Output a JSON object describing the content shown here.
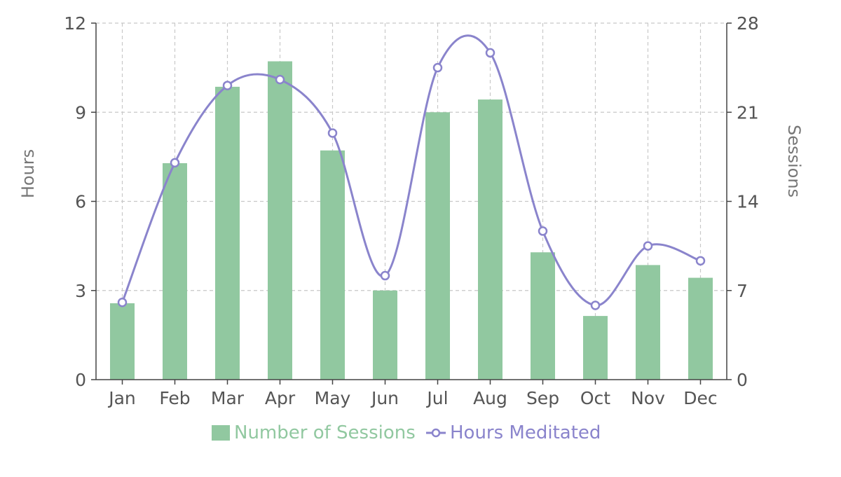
{
  "chart_data": {
    "type": "bar",
    "categories": [
      "Jan",
      "Feb",
      "Mar",
      "Apr",
      "May",
      "Jun",
      "Jul",
      "Aug",
      "Sep",
      "Oct",
      "Nov",
      "Dec"
    ],
    "series": [
      {
        "name": "Number of Sessions",
        "type": "bar",
        "axis": "right",
        "color": "#91c8a0",
        "values": [
          6,
          17,
          23,
          25,
          18,
          7,
          21,
          22,
          10,
          5,
          9,
          8
        ]
      },
      {
        "name": "Hours Meditated",
        "type": "line",
        "axis": "left",
        "color": "#8a84cc",
        "smooth": true,
        "values": [
          2.6,
          7.3,
          9.9,
          10.1,
          8.3,
          3.5,
          10.5,
          11.0,
          5.0,
          2.5,
          4.5,
          4.0
        ]
      }
    ],
    "y_left": {
      "label": "Hours",
      "ylim": [
        0,
        12
      ],
      "ticks": [
        0,
        3,
        6,
        9,
        12
      ]
    },
    "y_right": {
      "label": "Sessions",
      "ylim": [
        0,
        28
      ],
      "ticks": [
        0,
        7,
        14,
        21,
        28
      ]
    },
    "grid": true,
    "legend_position": "bottom-center"
  }
}
